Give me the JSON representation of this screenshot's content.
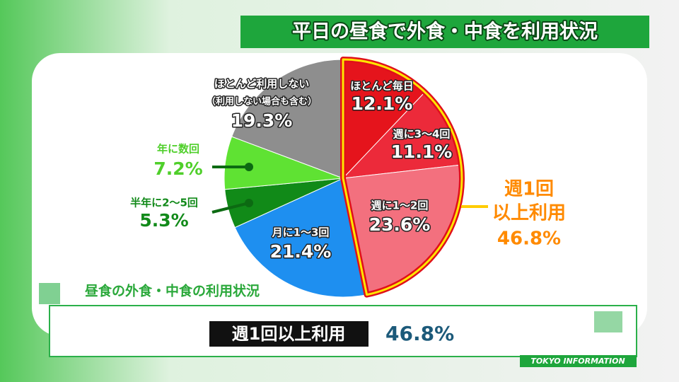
{
  "header": {
    "title": "平日の昼食で外食・中食を利用状況"
  },
  "chart_data": {
    "type": "pie",
    "categories": [
      "ほとんど毎日",
      "週に3～4回",
      "週に1～2回",
      "月に1～3回",
      "半年に2～5回",
      "年に数回",
      "ほとんど利用しない"
    ],
    "values": [
      12.1,
      11.1,
      23.6,
      21.4,
      5.3,
      7.2,
      19.3
    ],
    "value_labels": [
      "12.1%",
      "11.1%",
      "23.6%",
      "21.4%",
      "5.3%",
      "7.2%",
      "19.3%"
    ],
    "colors": [
      "#e5141c",
      "#ec2a3a",
      "#f3707e",
      "#1e8ff0",
      "#118a18",
      "#5fe233",
      "#8e8e8e"
    ],
    "category_note": "（利用しない場合も含む）",
    "annotation": {
      "lines": [
        "週1回",
        "以上利用"
      ],
      "value": 46.8,
      "value_label": "46.8%"
    }
  },
  "lower_third": {
    "caption": "昼食の外食・中食の利用状況",
    "label": "週1回以上利用",
    "value": "46.8%"
  },
  "logo": "TOKYO INFORMATION"
}
